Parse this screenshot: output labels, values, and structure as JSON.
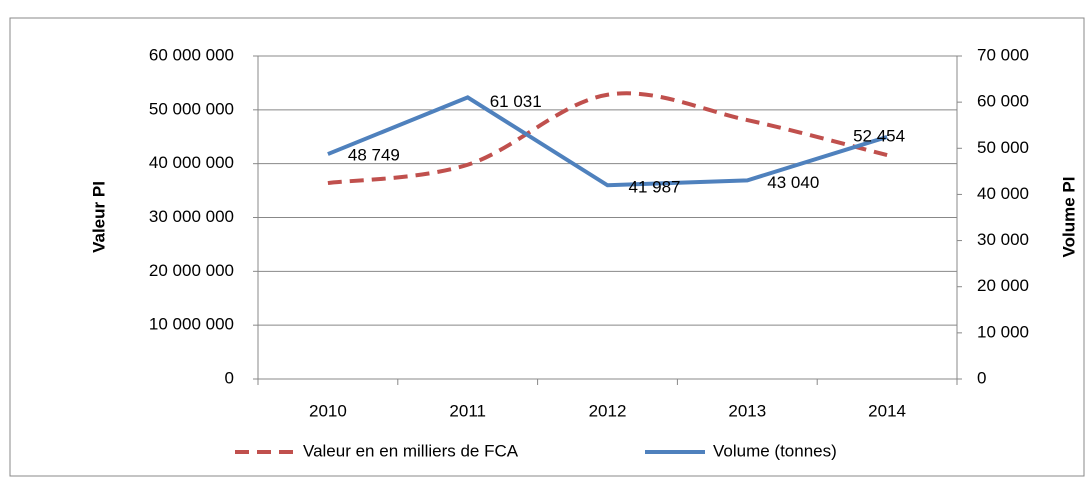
{
  "chart_data": {
    "type": "line",
    "categories": [
      "2010",
      "2011",
      "2012",
      "2013",
      "2014"
    ],
    "y_label": "Valeur PI",
    "y2_label": "Volume PI",
    "ylim": [
      0,
      60000000
    ],
    "yticks": [
      0,
      {
        "value": 10000000,
        "label": "10 000 000"
      },
      {
        "value": 20000000,
        "label": "20 000 000"
      },
      {
        "value": 30000000,
        "label": "30 000 000"
      },
      {
        "value": 40000000,
        "label": "40 000 000"
      },
      {
        "value": 50000000,
        "label": "50 000 000"
      },
      {
        "value": 60000000,
        "label": "60 000 000"
      }
    ],
    "y2lim": [
      0,
      70000
    ],
    "y2ticks": [
      0,
      {
        "value": 10000,
        "label": "10 000"
      },
      {
        "value": 20000,
        "label": "20 000"
      },
      {
        "value": 30000,
        "label": "30 000"
      },
      {
        "value": 40000,
        "label": "40 000"
      },
      {
        "value": 50000,
        "label": "50 000"
      },
      {
        "value": 60000,
        "label": "60 000"
      },
      {
        "value": 70000,
        "label": "70 000"
      }
    ],
    "grid": true,
    "legend": "bottom",
    "series": [
      {
        "name": "Valeur en  en milliers de FCA",
        "color": "#c0504d",
        "dashed": true,
        "smooth": true,
        "values": [
          36400000,
          39800000,
          52800000,
          48100000,
          41600000
        ]
      },
      {
        "name": "Volume (tonnes)",
        "color": "#4f81bd",
        "axis": "y2",
        "values": [
          48749,
          61031,
          41987,
          43040,
          52454
        ],
        "value_labels": [
          "48 749",
          "61 031",
          "41 987",
          "43 040",
          "52 454"
        ]
      }
    ]
  }
}
